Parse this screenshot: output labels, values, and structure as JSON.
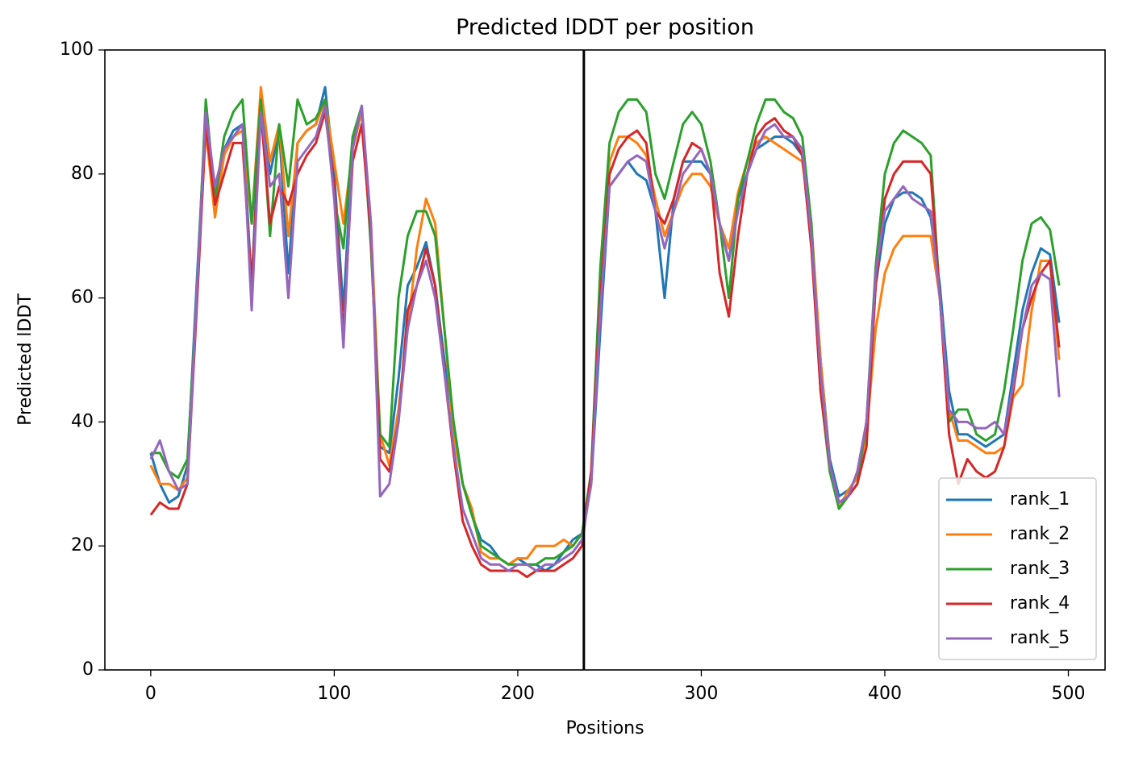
{
  "chart_data": {
    "type": "line",
    "title": "Predicted lDDT per position",
    "xlabel": "Positions",
    "ylabel": "Predicted lDDT",
    "x": [
      0,
      5,
      10,
      15,
      20,
      25,
      30,
      35,
      40,
      45,
      50,
      55,
      60,
      65,
      70,
      75,
      80,
      85,
      90,
      95,
      100,
      105,
      110,
      115,
      120,
      125,
      130,
      135,
      140,
      145,
      150,
      155,
      160,
      165,
      170,
      175,
      180,
      185,
      190,
      195,
      200,
      205,
      210,
      215,
      220,
      225,
      230,
      235,
      240,
      245,
      250,
      255,
      260,
      265,
      270,
      275,
      280,
      285,
      290,
      295,
      300,
      305,
      310,
      315,
      320,
      325,
      330,
      335,
      340,
      345,
      350,
      355,
      360,
      365,
      370,
      375,
      380,
      385,
      390,
      395,
      400,
      405,
      410,
      415,
      420,
      425,
      430,
      435,
      440,
      445,
      450,
      455,
      460,
      465,
      470,
      475,
      480,
      485,
      490,
      495
    ],
    "series": [
      {
        "name": "rank_1",
        "color": "#1f77b4",
        "values": [
          35,
          30,
          27,
          28,
          33,
          62,
          90,
          76,
          84,
          87,
          88,
          62,
          93,
          80,
          87,
          64,
          85,
          87,
          88,
          94,
          80,
          58,
          85,
          90,
          70,
          36,
          35,
          47,
          62,
          65,
          69,
          62,
          50,
          40,
          30,
          25,
          21,
          20,
          18,
          17,
          18,
          17,
          17,
          16,
          17,
          19,
          21,
          22,
          30,
          55,
          78,
          80,
          82,
          80,
          79,
          74,
          60,
          76,
          82,
          82,
          82,
          80,
          72,
          66,
          76,
          80,
          84,
          85,
          86,
          86,
          85,
          83,
          70,
          50,
          34,
          28,
          29,
          31,
          40,
          62,
          72,
          76,
          77,
          77,
          76,
          73,
          62,
          45,
          38,
          38,
          37,
          36,
          37,
          38,
          48,
          58,
          64,
          68,
          67,
          56
        ]
      },
      {
        "name": "rank_2",
        "color": "#ff7f0e",
        "values": [
          33,
          30,
          30,
          29,
          31,
          60,
          87,
          73,
          83,
          86,
          87,
          72,
          94,
          82,
          88,
          70,
          85,
          87,
          88,
          92,
          82,
          72,
          84,
          90,
          72,
          38,
          33,
          42,
          55,
          68,
          76,
          72,
          55,
          38,
          30,
          26,
          19,
          18,
          18,
          17,
          18,
          18,
          20,
          20,
          20,
          21,
          20,
          22,
          30,
          62,
          82,
          86,
          86,
          85,
          83,
          76,
          70,
          74,
          78,
          80,
          80,
          78,
          72,
          68,
          77,
          82,
          85,
          86,
          85,
          84,
          83,
          82,
          72,
          50,
          33,
          26,
          29,
          31,
          38,
          55,
          64,
          68,
          70,
          70,
          70,
          70,
          60,
          42,
          37,
          37,
          36,
          35,
          35,
          36,
          44,
          46,
          58,
          66,
          66,
          50
        ]
      },
      {
        "name": "rank_3",
        "color": "#2ca02c",
        "values": [
          35,
          35,
          32,
          31,
          34,
          60,
          92,
          76,
          86,
          90,
          92,
          72,
          92,
          70,
          88,
          78,
          92,
          88,
          89,
          92,
          76,
          68,
          86,
          91,
          68,
          38,
          36,
          60,
          70,
          74,
          74,
          70,
          55,
          40,
          30,
          25,
          20,
          19,
          18,
          17,
          17,
          17,
          17,
          18,
          18,
          19,
          20,
          22,
          32,
          65,
          85,
          90,
          92,
          92,
          90,
          80,
          76,
          82,
          88,
          90,
          88,
          82,
          72,
          60,
          76,
          82,
          88,
          92,
          92,
          90,
          89,
          86,
          72,
          45,
          32,
          26,
          28,
          30,
          40,
          65,
          80,
          85,
          87,
          86,
          85,
          83,
          60,
          40,
          42,
          42,
          38,
          37,
          38,
          45,
          55,
          66,
          72,
          73,
          71,
          62
        ]
      },
      {
        "name": "rank_4",
        "color": "#d62728",
        "values": [
          25,
          27,
          26,
          26,
          30,
          58,
          88,
          75,
          80,
          85,
          85,
          62,
          90,
          72,
          78,
          75,
          80,
          83,
          85,
          90,
          78,
          54,
          82,
          88,
          70,
          34,
          32,
          40,
          58,
          62,
          68,
          62,
          48,
          35,
          24,
          20,
          17,
          16,
          16,
          16,
          16,
          15,
          16,
          16,
          16,
          17,
          18,
          20,
          32,
          60,
          80,
          84,
          86,
          87,
          85,
          74,
          72,
          76,
          82,
          85,
          84,
          80,
          64,
          57,
          70,
          80,
          86,
          88,
          89,
          87,
          86,
          83,
          68,
          45,
          33,
          27,
          28,
          30,
          36,
          62,
          76,
          80,
          82,
          82,
          82,
          80,
          60,
          38,
          30,
          34,
          32,
          31,
          32,
          36,
          45,
          55,
          60,
          64,
          66,
          52
        ]
      },
      {
        "name": "rank_5",
        "color": "#9467bd",
        "values": [
          34,
          37,
          32,
          29,
          30,
          60,
          90,
          78,
          84,
          86,
          88,
          58,
          90,
          78,
          80,
          60,
          82,
          84,
          86,
          91,
          76,
          52,
          84,
          91,
          72,
          28,
          30,
          40,
          55,
          62,
          66,
          60,
          48,
          36,
          26,
          22,
          18,
          17,
          17,
          16,
          17,
          17,
          16,
          17,
          17,
          18,
          19,
          21,
          30,
          58,
          78,
          80,
          82,
          83,
          82,
          74,
          68,
          74,
          80,
          82,
          84,
          80,
          72,
          66,
          74,
          80,
          84,
          87,
          88,
          86,
          86,
          84,
          70,
          48,
          33,
          27,
          28,
          32,
          40,
          64,
          74,
          76,
          78,
          76,
          75,
          74,
          60,
          42,
          40,
          40,
          39,
          39,
          40,
          38,
          46,
          55,
          62,
          64,
          63,
          44
        ]
      }
    ],
    "xlim": [
      -25,
      520
    ],
    "ylim": [
      0,
      100
    ],
    "xticks": [
      0,
      100,
      200,
      300,
      400,
      500
    ],
    "yticks": [
      0,
      20,
      40,
      60,
      80,
      100
    ],
    "vline": 236,
    "vline_color": "#000000",
    "legend": "lower right"
  }
}
